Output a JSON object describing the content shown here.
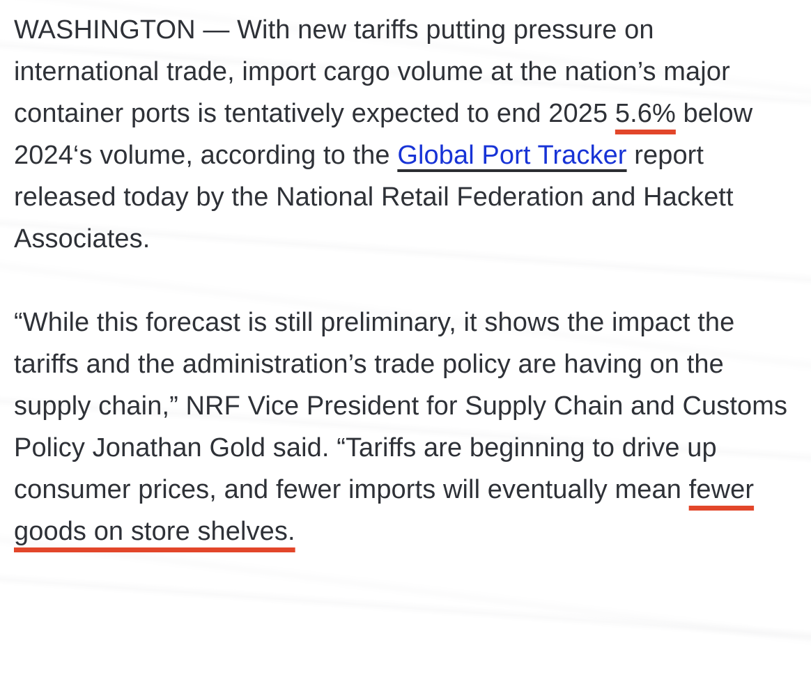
{
  "article": {
    "p1": {
      "lead": "WASHINGTON — With new tariffs putting pressure on international trade, import cargo volume at the nation’s major container ports is tentatively expected to end 2025 ",
      "stat": "5.6%",
      "mid": " below 2024‘s volume, according to the ",
      "link_label": "Global Port Tracker",
      "tail": " report released today by the National Retail Federation and Hackett Associates."
    },
    "p2": {
      "lead": "“While this forecast is still preliminary, it shows the impact the tariffs and the administration’s trade policy are having on the supply chain,” NRF Vice President for Supply Chain and Customs Policy Jonathan Gold said. “Tariffs are beginning to drive up consumer prices, and fewer imports will eventually mean ",
      "highlight": "fewer goods on store shelves."
    }
  },
  "colors": {
    "text": "#2e3137",
    "link_blue": "#1733d6",
    "link_underline": "#2b2d31",
    "annotation_red": "#e2462a",
    "background": "#ffffff"
  }
}
